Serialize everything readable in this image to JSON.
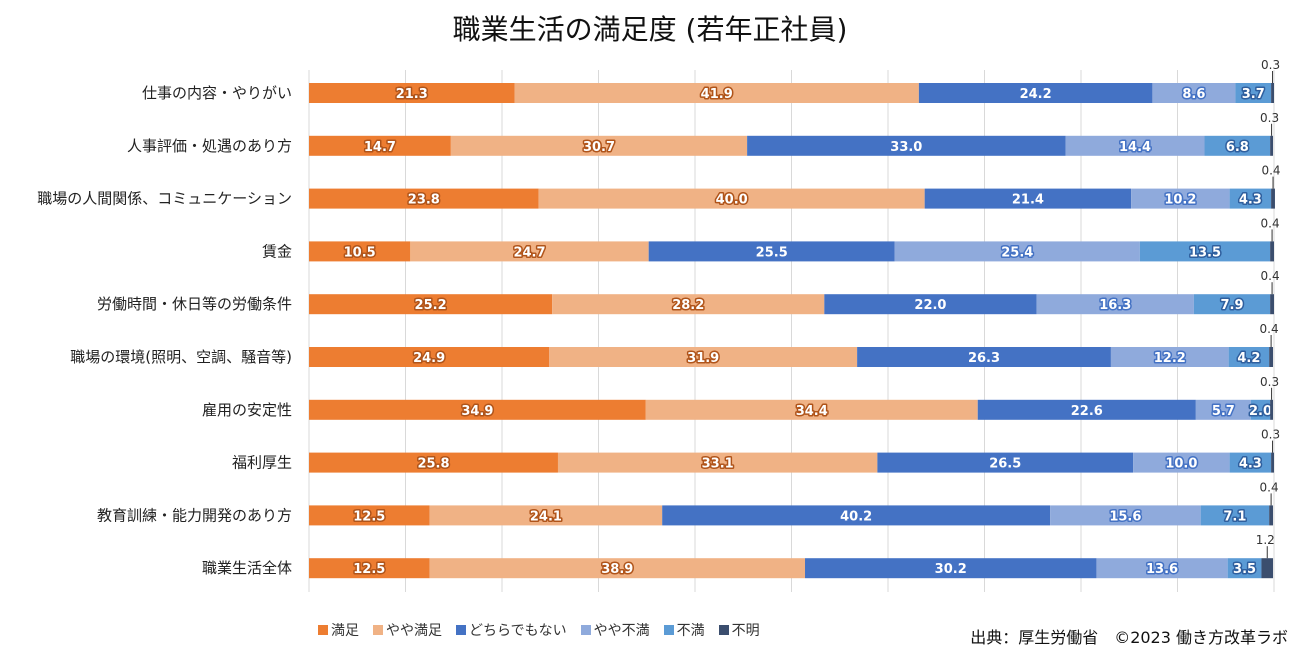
{
  "chart_data": {
    "type": "bar",
    "orientation": "horizontal",
    "stacked": true,
    "title": "職業生活の満足度 (若年正社員)",
    "categories": [
      "仕事の内容・やりがい",
      "人事評価・処遇のあり方",
      "職場の人間関係、コミュニケーション",
      "賃金",
      "労働時間・休日等の労働条件",
      "職場の環境(照明、空調、騒音等)",
      "雇用の安定性",
      "福利厚生",
      "教育訓練・能力開発のあり方",
      "職業生活全体"
    ],
    "series": [
      {
        "name": "満足",
        "color": "#ED7D31",
        "values": [
          21.3,
          14.7,
          23.8,
          10.5,
          25.2,
          24.9,
          34.9,
          25.8,
          12.5,
          12.5
        ]
      },
      {
        "name": "やや満足",
        "color": "#F0B285",
        "values": [
          41.9,
          30.7,
          40.0,
          24.7,
          28.2,
          31.9,
          34.4,
          33.1,
          24.1,
          38.9
        ]
      },
      {
        "name": "どちらでもない",
        "color": "#4472C4",
        "values": [
          24.2,
          33.0,
          21.4,
          25.5,
          22.0,
          26.3,
          22.6,
          26.5,
          40.2,
          30.2
        ]
      },
      {
        "name": "やや不満",
        "color": "#8FAADC",
        "values": [
          8.6,
          14.4,
          10.2,
          25.4,
          16.3,
          12.2,
          5.7,
          10.0,
          15.6,
          13.6
        ]
      },
      {
        "name": "不満",
        "color": "#5B9BD5",
        "values": [
          3.7,
          6.8,
          4.3,
          13.5,
          7.9,
          4.2,
          2.0,
          4.3,
          7.1,
          3.5
        ]
      },
      {
        "name": "不明",
        "color": "#3B4E6E",
        "values": [
          0.3,
          0.3,
          0.4,
          0.4,
          0.4,
          0.4,
          0.3,
          0.3,
          0.4,
          1.2
        ]
      }
    ],
    "xlim": [
      0,
      100
    ],
    "grid": true,
    "legend": "bottom-left"
  },
  "source": "出典：厚生労働省　©2023 働き方改革ラボ"
}
